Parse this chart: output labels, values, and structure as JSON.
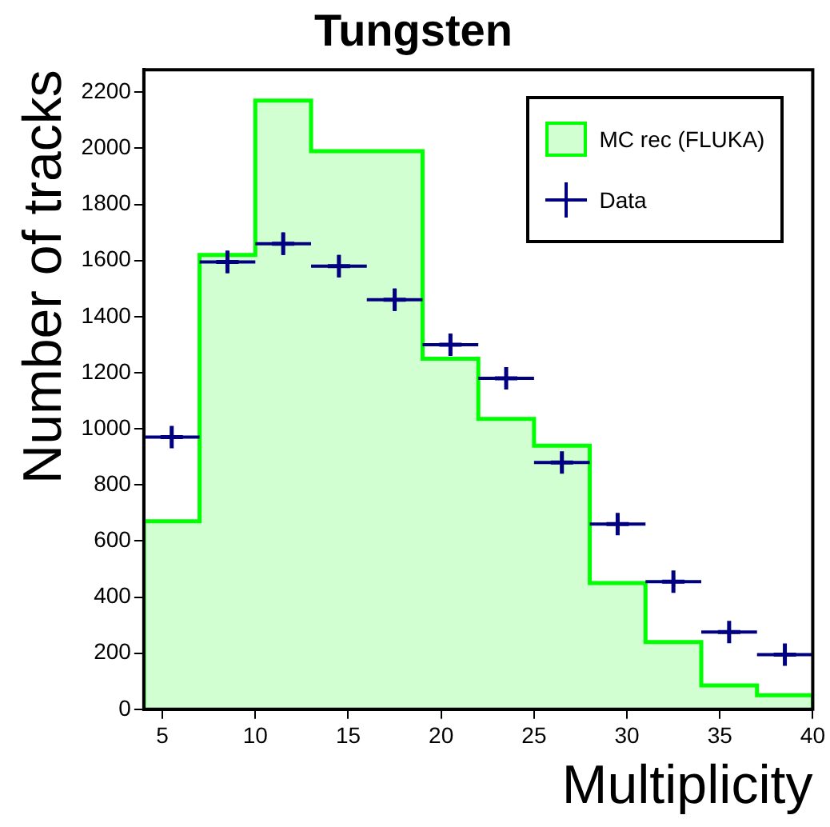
{
  "chart_data": {
    "type": "histogram",
    "title": "Tungsten",
    "xlabel": "Multiplicity",
    "ylabel": "Number of tracks",
    "bins": [
      4,
      7,
      10,
      13,
      16,
      19,
      22,
      25,
      28,
      31,
      34,
      37,
      40
    ],
    "xlim": [
      4,
      40
    ],
    "xticks": [
      5,
      10,
      15,
      20,
      25,
      30,
      35,
      40
    ],
    "ylim": [
      0,
      2280
    ],
    "yticks": [
      0,
      200,
      400,
      600,
      800,
      1000,
      1200,
      1400,
      1600,
      1800,
      2000,
      2200
    ],
    "legend": "top right",
    "marker": "cross",
    "series": [
      {
        "name": "MC rec (FLUKA)",
        "type": "histogram",
        "color": "#00ff00",
        "values": [
          670,
          1620,
          2170,
          1990,
          1990,
          1250,
          1035,
          940,
          450,
          240,
          85,
          50
        ]
      },
      {
        "name": "Data",
        "type": "scatter",
        "color": "#000080",
        "x": [
          5.5,
          8.5,
          11.5,
          14.5,
          17.5,
          20.5,
          23.5,
          26.5,
          29.5,
          32.5,
          35.5,
          38.5
        ],
        "values": [
          970,
          1595,
          1660,
          1580,
          1460,
          1300,
          1180,
          880,
          660,
          455,
          275,
          195
        ],
        "errors": [
          30,
          40,
          40,
          40,
          40,
          35,
          35,
          30,
          25,
          20,
          15,
          15
        ],
        "xerrors": [
          1.5,
          1.5,
          1.5,
          1.5,
          1.5,
          1.5,
          1.5,
          1.5,
          1.5,
          1.5,
          1.5,
          1.5
        ]
      }
    ]
  }
}
